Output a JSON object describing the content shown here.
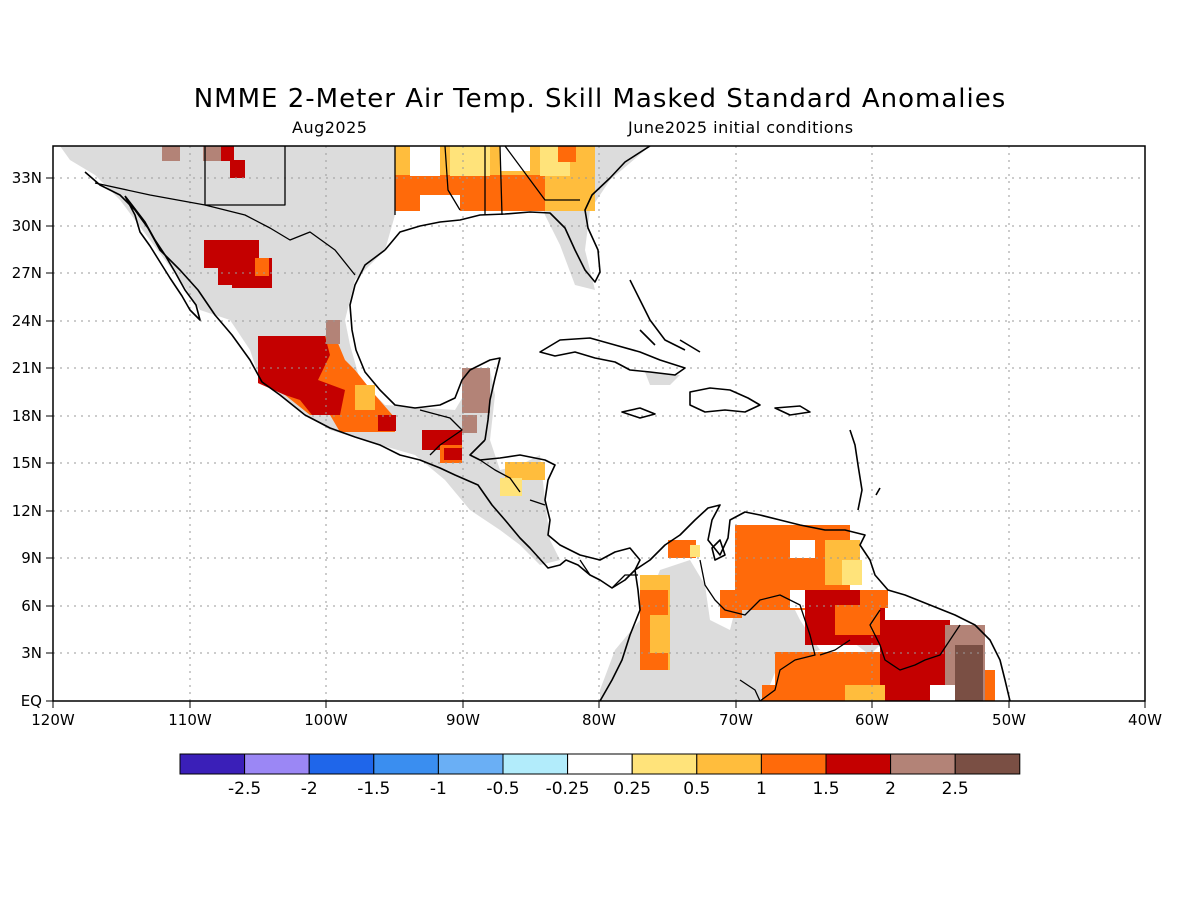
{
  "title": "NMME 2-Meter Air Temp. Skill Masked Standard Anomalies",
  "subtitle_left": "Aug2025",
  "subtitle_right": "June2025 initial conditions",
  "lat_labels": [
    "33N",
    "30N",
    "27N",
    "24N",
    "21N",
    "18N",
    "15N",
    "12N",
    "9N",
    "6N",
    "3N",
    "EQ"
  ],
  "lon_labels": [
    "120W",
    "110W",
    "100W",
    "90W",
    "80W",
    "70W",
    "60W",
    "50W",
    "40W"
  ],
  "legend": {
    "colors": [
      "#3a1fb8",
      "#9b87f5",
      "#1f66ea",
      "#3a8ef0",
      "#6aaff5",
      "#b2ecfb",
      "#ffffff",
      "#ffe37a",
      "#ffbd3d",
      "#ff6a0a",
      "#c40000",
      "#b38377",
      "#7a4f44"
    ],
    "labels": [
      "-2.5",
      "-2",
      "-1.5",
      "-1",
      "-0.5",
      "-0.25",
      "0.25",
      "0.5",
      "1",
      "1.5",
      "2",
      "2.5"
    ]
  },
  "colors": {
    "skill_mask_gray": "#dcdcdc",
    "coast": "#000000",
    "grid": "#9a9a9a"
  }
}
